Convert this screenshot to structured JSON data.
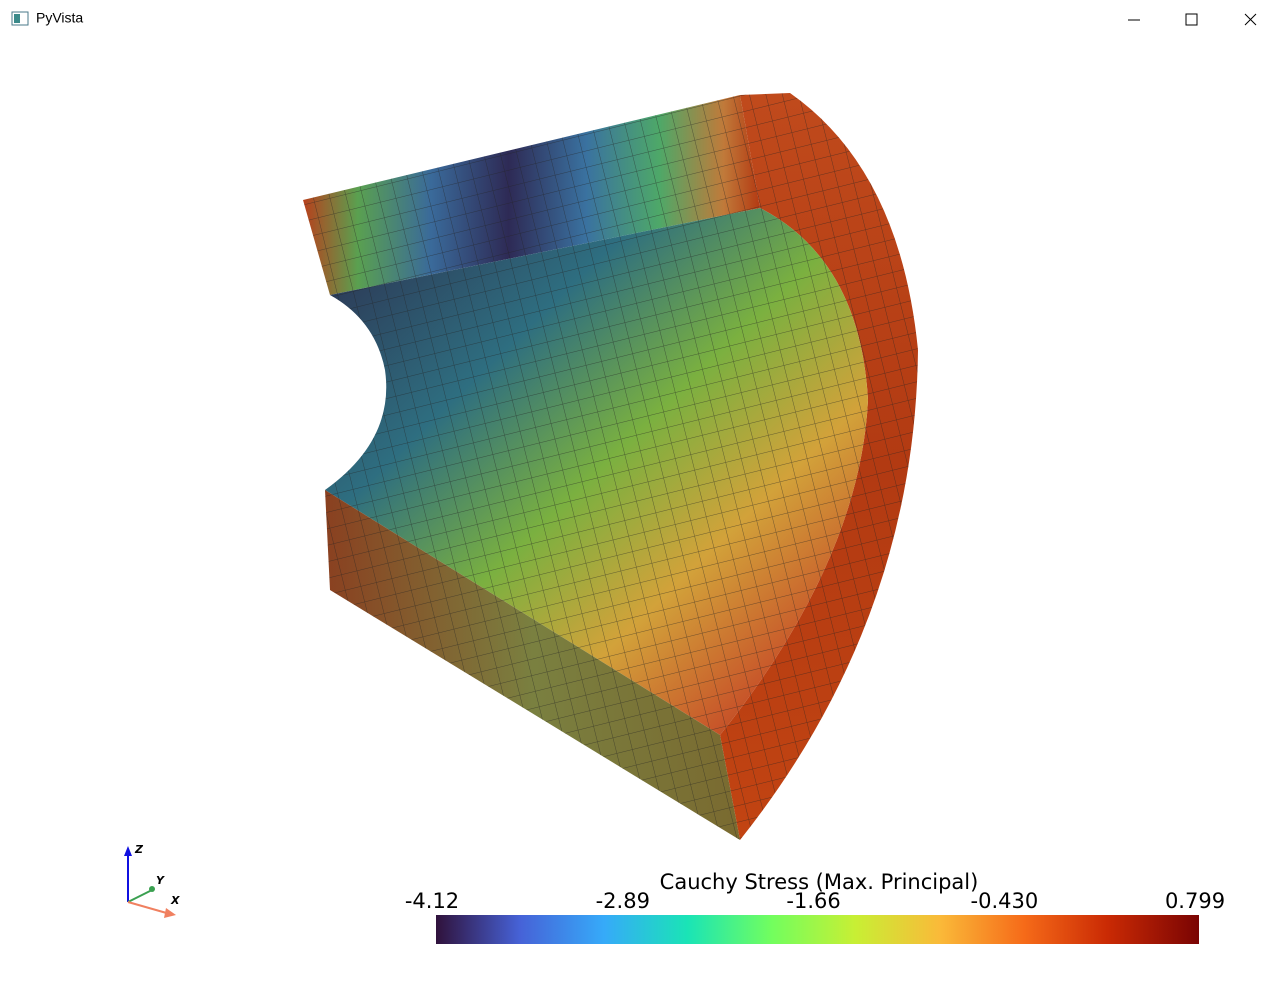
{
  "window": {
    "title": "PyVista"
  },
  "scalar_bar": {
    "title": "Cauchy Stress (Max. Principal)",
    "range": [
      -4.12,
      0.799
    ],
    "ticks": [
      -4.12,
      -2.89,
      -1.66,
      {
        "value": -0.43,
        "label": "-0.430"
      },
      0.799
    ]
  },
  "axes": {
    "z": "Z",
    "y": "Y",
    "x": "X"
  }
}
